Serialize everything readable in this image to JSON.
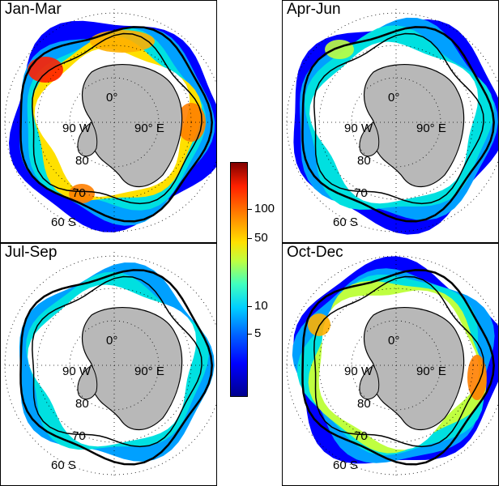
{
  "panels": [
    {
      "title": "Jan-Mar",
      "lat_labels": [
        "80",
        "70",
        "60 S"
      ],
      "lon_labels": [
        "0°",
        "90 W",
        "90° E"
      ]
    },
    {
      "title": "Apr-Jun",
      "lat_labels": [
        "80",
        "70",
        "60 S"
      ],
      "lon_labels": [
        "0°",
        "90 W",
        "90° E"
      ]
    },
    {
      "title": "Jul-Sep",
      "lat_labels": [
        "80",
        "70",
        "60 S"
      ],
      "lon_labels": [
        "0°",
        "90 W",
        "90° E"
      ]
    },
    {
      "title": "Oct-Dec",
      "lat_labels": [
        "80",
        "70",
        "60 S"
      ],
      "lon_labels": [
        "0°",
        "90 W",
        "90° E"
      ]
    }
  ],
  "colorbar": {
    "scale": "log",
    "ticks": [
      "100",
      "50",
      "10",
      "5"
    ],
    "colors": {
      "low": "#00008f",
      "mid": "#40ffbf",
      "high": "#800000"
    }
  },
  "colors": {
    "land": "#b8b8b8",
    "coast": "#000000",
    "grid": "#000000"
  }
}
